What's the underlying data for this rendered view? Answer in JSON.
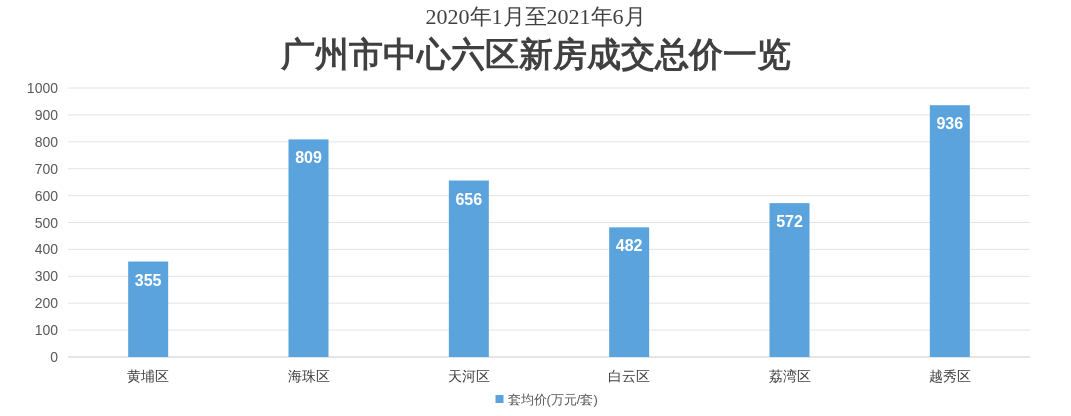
{
  "chart_data": {
    "type": "bar",
    "subtitle": "2020年1月至2021年6月",
    "title": "广州市中心六区新房成交总价一览",
    "categories": [
      "黄埔区",
      "海珠区",
      "天河区",
      "白云区",
      "荔湾区",
      "越秀区"
    ],
    "series": [
      {
        "name": "套均价(万元/套)",
        "color": "#5ba3dc",
        "values": [
          355,
          809,
          656,
          482,
          572,
          936
        ]
      }
    ],
    "ylim": [
      0,
      1000
    ],
    "yticks": [
      0,
      100,
      200,
      300,
      400,
      500,
      600,
      700,
      800,
      900,
      1000
    ],
    "grid": "y",
    "legend": "bottom",
    "data_labels": true
  }
}
